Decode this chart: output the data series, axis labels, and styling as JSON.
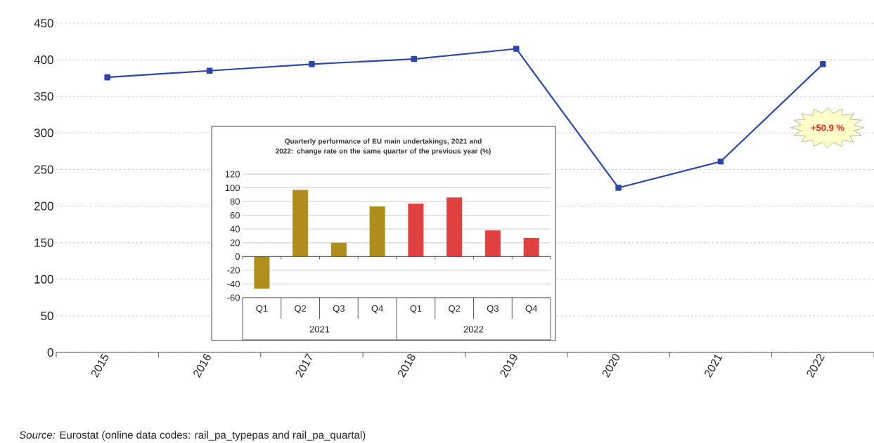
{
  "chart_data": [
    {
      "type": "line",
      "categories": [
        "2015",
        "2016",
        "2017",
        "2018",
        "2019",
        "2020",
        "2021",
        "2022"
      ],
      "values": [
        376,
        385,
        394,
        401,
        415,
        225,
        261,
        394
      ],
      "color": "#2e46a8",
      "marker": "square",
      "ylim": [
        0,
        450
      ],
      "yticks": [
        0,
        50,
        100,
        150,
        200,
        250,
        300,
        350,
        400,
        450
      ],
      "grid": "y",
      "annotations": [
        "+50.9 %",
        "*Source:* Eurostat (online data codes: rail_pa_typepas and rail_pa_quartal)"
      ]
    },
    {
      "type": "bar",
      "title": "Quarterly performance of EU  main undertakings, 2021 and 2022: change rate on the same quarter of the previous year (%)",
      "categories": [
        "Q1",
        "Q2",
        "Q3",
        "Q4",
        "Q1",
        "Q2",
        "Q3",
        "Q4"
      ],
      "values": [
        -47,
        97,
        20,
        73,
        77,
        86,
        38,
        27
      ],
      "colors": [
        "#b08e1e",
        "#b08e1e",
        "#b08e1e",
        "#b08e1e",
        "#e04040",
        "#e04040",
        "#e04040",
        "#e04040"
      ],
      "ylim": [
        -60,
        120
      ],
      "yticks": [
        -60,
        -40,
        -20,
        0,
        20,
        40,
        60,
        80,
        100,
        120
      ],
      "grid": "y",
      "annotations": [
        "2021",
        "2022"
      ]
    }
  ]
}
